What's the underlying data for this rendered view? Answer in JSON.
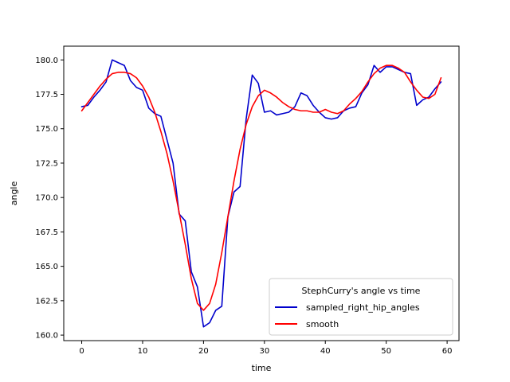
{
  "chart_data": {
    "type": "line",
    "title": "",
    "xlabel": "time",
    "ylabel": "angle",
    "xlim": [
      -2.95,
      61.95
    ],
    "ylim": [
      159.6,
      181.0
    ],
    "x_ticks": [
      0,
      10,
      20,
      30,
      40,
      50,
      60
    ],
    "x_tick_labels": [
      "0",
      "10",
      "20",
      "30",
      "40",
      "50",
      "60"
    ],
    "y_ticks": [
      160.0,
      162.5,
      165.0,
      167.5,
      170.0,
      172.5,
      175.0,
      177.5,
      180.0
    ],
    "y_tick_labels": [
      "160.0",
      "162.5",
      "165.0",
      "167.5",
      "170.0",
      "172.5",
      "175.0",
      "177.5",
      "180.0"
    ],
    "grid": false,
    "legend": {
      "title": "StephCurry's angle vs time",
      "placement": "lower-right"
    },
    "x": [
      0,
      1,
      2,
      3,
      4,
      5,
      6,
      7,
      8,
      9,
      10,
      11,
      12,
      13,
      14,
      15,
      16,
      17,
      18,
      19,
      20,
      21,
      22,
      23,
      24,
      25,
      26,
      27,
      28,
      29,
      30,
      31,
      32,
      33,
      34,
      35,
      36,
      37,
      38,
      39,
      40,
      41,
      42,
      43,
      44,
      45,
      46,
      47,
      48,
      49,
      50,
      51,
      52,
      53,
      54,
      55,
      56,
      57,
      58,
      59
    ],
    "series": [
      {
        "name": "sampled_right_hip_angles",
        "color": "#0000cc",
        "values": [
          176.6,
          176.7,
          177.3,
          177.8,
          178.4,
          180.0,
          179.8,
          179.6,
          178.5,
          178.0,
          177.8,
          176.5,
          176.1,
          175.9,
          174.2,
          172.5,
          168.8,
          168.3,
          164.6,
          163.5,
          160.6,
          160.9,
          161.8,
          162.1,
          168.6,
          170.4,
          170.8,
          175.7,
          178.9,
          178.3,
          176.2,
          176.3,
          176.0,
          176.1,
          176.2,
          176.6,
          177.6,
          177.4,
          176.7,
          176.2,
          175.8,
          175.7,
          175.8,
          176.3,
          176.5,
          176.6,
          177.6,
          178.2,
          179.6,
          179.1,
          179.5,
          179.5,
          179.3,
          179.1,
          179.0,
          176.7,
          177.1,
          177.3,
          177.9,
          178.4
        ]
      },
      {
        "name": "smooth",
        "color": "#ff0000",
        "values": [
          176.3,
          176.9,
          177.5,
          178.1,
          178.6,
          179.0,
          179.1,
          179.1,
          179.0,
          178.7,
          178.1,
          177.3,
          176.2,
          174.8,
          173.2,
          171.2,
          168.9,
          166.6,
          164.1,
          162.3,
          161.8,
          162.3,
          163.7,
          166.0,
          168.6,
          171.2,
          173.5,
          175.3,
          176.6,
          177.4,
          177.8,
          177.6,
          177.3,
          176.9,
          176.6,
          176.4,
          176.3,
          176.3,
          176.2,
          176.2,
          176.4,
          176.2,
          176.1,
          176.3,
          176.8,
          177.2,
          177.7,
          178.4,
          179.0,
          179.4,
          179.6,
          179.6,
          179.4,
          179.1,
          178.4,
          177.8,
          177.3,
          177.2,
          177.5,
          178.7
        ]
      }
    ]
  }
}
